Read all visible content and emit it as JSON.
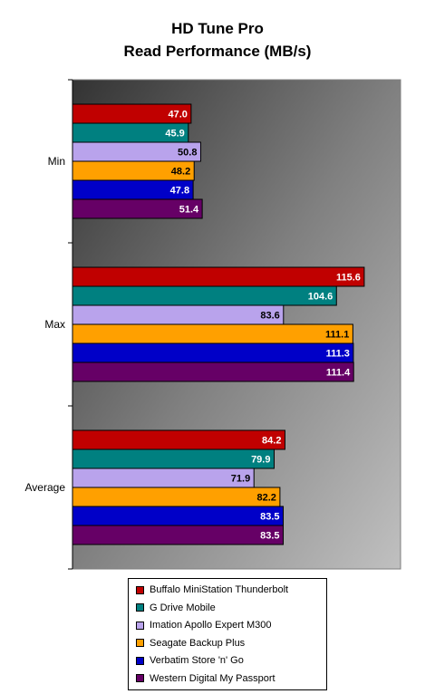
{
  "chart_data": {
    "type": "bar",
    "orientation": "horizontal",
    "title_lines": [
      "HD Tune Pro",
      "Read Performance (MB/s)"
    ],
    "categories": [
      "Min",
      "Max",
      "Average"
    ],
    "series": [
      {
        "name": "Buffalo MiniStation Thunderbolt",
        "color": "#c00000",
        "values": [
          47.0,
          115.6,
          84.2
        ]
      },
      {
        "name": "G Drive Mobile",
        "color": "#008080",
        "values": [
          45.9,
          104.6,
          79.9
        ]
      },
      {
        "name": "Imation Apollo Expert M300",
        "color": "#b9a3ec",
        "values": [
          50.8,
          83.6,
          71.9
        ]
      },
      {
        "name": "Seagate Backup Plus",
        "color": "#ffa000",
        "values": [
          48.2,
          111.1,
          82.2
        ]
      },
      {
        "name": "Verbatim Store 'n' Go",
        "color": "#0000c8",
        "values": [
          47.8,
          111.3,
          83.5
        ]
      },
      {
        "name": "Western Digital My Passport",
        "color": "#660066",
        "values": [
          51.4,
          111.4,
          83.5
        ]
      }
    ],
    "value_labels": [
      [
        "47.0",
        "115.6",
        "84.2"
      ],
      [
        "45.9",
        "104.6",
        "79.9"
      ],
      [
        "50.8",
        "83.6",
        "71.9"
      ],
      [
        "48.2",
        "111.1",
        "82.2"
      ],
      [
        "47.8",
        "111.3",
        "83.5"
      ],
      [
        "51.4",
        "111.4",
        "83.5"
      ]
    ],
    "label_colors": [
      "#ffffff",
      "#ffffff",
      "#000000",
      "#000000",
      "#ffffff",
      "#ffffff"
    ],
    "xlim": [
      0,
      130
    ],
    "legend_position": "bottom",
    "plot_background": "gradient gray"
  }
}
